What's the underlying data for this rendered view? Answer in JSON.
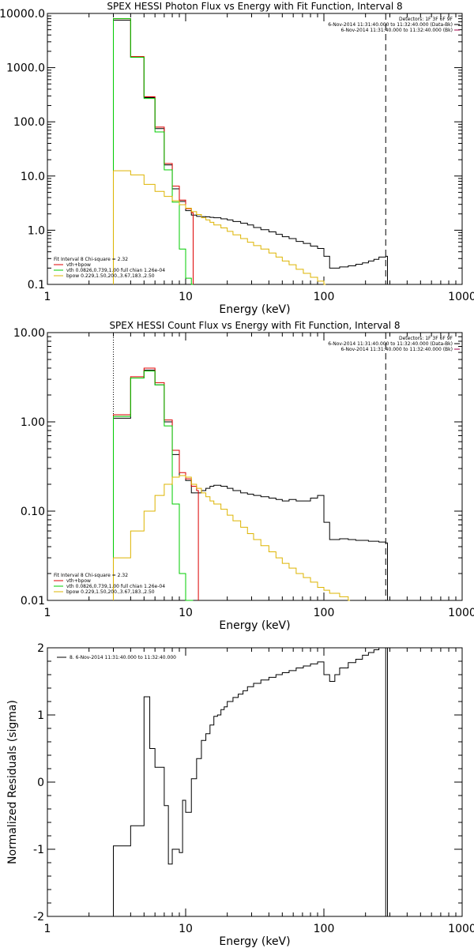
{
  "chart_data": [
    {
      "type": "line",
      "title": "SPEX HESSI Photon Flux vs Energy with Fit Function, Interval 8",
      "xlabel": "Energy (keV)",
      "ylabel": "",
      "xscale": "log",
      "yscale": "log",
      "xlim": [
        1,
        1000
      ],
      "ylim": [
        0.1,
        10000
      ],
      "xticks": [
        "1",
        "10",
        "100",
        "1000"
      ],
      "yticks": [
        "0.1",
        "1.0",
        "10.0",
        "100.0",
        "1000.0",
        "10000.0"
      ],
      "fit_energy_start": 3,
      "fit_energy_end": 280,
      "header_lines": [
        "Detectors: 1F 3F 6F 9F",
        "6-Nov-2014 11:31:40.000 to 11:32:40.000 (Data-Bk)",
        "6-Nov-2014 11:31:40.000 to 11:32:40.000 (Bk)"
      ],
      "legend_title": "Fit Interval 8   Chi-square = 2.32",
      "legend_items": [
        {
          "label": "vth+bpow",
          "color": "#dd0000"
        },
        {
          "label": "vth 0.0826,0.739,1.00  full chian 1.26e-04",
          "color": "#00cc00"
        },
        {
          "label": "bpow 0.229,1.50,200.,3.67,183.,2.50",
          "color": "#ddb400"
        }
      ],
      "series": [
        {
          "name": "6-Nov-2014 11:31:40.000 to 11:32:40.000 (Data-Bk)",
          "color": "#000000",
          "style": "step",
          "x": [
            3,
            4,
            5,
            6,
            7,
            8,
            9,
            10,
            11,
            12,
            13,
            14,
            15,
            16,
            18,
            20,
            22,
            25,
            28,
            31,
            35,
            40,
            45,
            50,
            56,
            63,
            71,
            80,
            90,
            100,
            110,
            130,
            150,
            170,
            190,
            210,
            230,
            250,
            280
          ],
          "y": [
            7500,
            1550,
            280,
            75,
            16,
            5.8,
            3.4,
            2.3,
            1.9,
            1.8,
            1.78,
            1.76,
            1.73,
            1.7,
            1.62,
            1.55,
            1.45,
            1.35,
            1.25,
            1.12,
            1.02,
            0.93,
            0.84,
            0.76,
            0.7,
            0.62,
            0.57,
            0.51,
            0.46,
            0.33,
            0.2,
            0.21,
            0.22,
            0.235,
            0.25,
            0.27,
            0.29,
            0.32,
            0.33
          ]
        },
        {
          "name": "vth+bpow",
          "color": "#dd0000",
          "style": "step",
          "x": [
            3,
            4,
            5,
            6,
            7,
            8,
            9,
            10,
            11
          ],
          "y": [
            8000,
            1600,
            290,
            80,
            17,
            6.5,
            3.6,
            2.5,
            2.1
          ]
        },
        {
          "name": "vth",
          "color": "#00cc00",
          "style": "step",
          "x": [
            3,
            4,
            5,
            6,
            7,
            8,
            9,
            10,
            11
          ],
          "y": [
            8000,
            1550,
            270,
            65,
            13,
            3.3,
            0.45,
            0.13,
            0.1
          ]
        },
        {
          "name": "bpow",
          "color": "#ddb400",
          "style": "step",
          "x": [
            3,
            4,
            5,
            6,
            7,
            8,
            9,
            10,
            11,
            12,
            13,
            14,
            15,
            16,
            18,
            20,
            22,
            25,
            28,
            31,
            35,
            40,
            45,
            50,
            56,
            63,
            71,
            80,
            90,
            100
          ],
          "y": [
            12.5,
            10.5,
            7.0,
            5.2,
            4.2,
            3.5,
            2.95,
            2.55,
            2.2,
            1.95,
            1.7,
            1.55,
            1.4,
            1.25,
            1.1,
            0.95,
            0.82,
            0.7,
            0.6,
            0.52,
            0.45,
            0.38,
            0.32,
            0.27,
            0.23,
            0.19,
            0.16,
            0.135,
            0.115,
            0.1
          ]
        }
      ]
    },
    {
      "type": "line",
      "title": "SPEX HESSI Count Flux vs Energy with Fit Function, Interval 8",
      "xlabel": "Energy (keV)",
      "ylabel": "",
      "xscale": "log",
      "yscale": "log",
      "xlim": [
        1,
        1000
      ],
      "ylim": [
        0.01,
        10
      ],
      "xticks": [
        "1",
        "10",
        "100",
        "1000"
      ],
      "yticks": [
        "0.01",
        "0.10",
        "1.00",
        "10.00"
      ],
      "fit_energy_start": 3,
      "fit_energy_end": 280,
      "header_lines": [
        "Detectors: 1F 3F 6F 9F",
        "6-Nov-2014 11:31:40.000 to 11:32:40.000 (Data-Bk)",
        "6-Nov-2014 11:31:40.000 to 11:32:40.000 (Bk)"
      ],
      "legend_title": "Fit Interval 8   Chi-square = 2.32",
      "legend_items": [
        {
          "label": "vth+bpow",
          "color": "#dd0000"
        },
        {
          "label": "vth 0.0826,0.739,1.00  full chian 1.26e-04",
          "color": "#00cc00"
        },
        {
          "label": "bpow 0.229,1.50,200.,3.67,183.,2.50",
          "color": "#ddb400"
        }
      ],
      "series": [
        {
          "name": "6-Nov-2014 11:31:40.000 to 11:32:40.000 (Data-Bk)",
          "color": "#000000",
          "style": "step",
          "x": [
            3,
            4,
            5,
            6,
            7,
            8,
            9,
            10,
            11,
            12,
            13,
            14,
            15,
            16,
            18,
            20,
            22,
            25,
            28,
            31,
            35,
            40,
            45,
            50,
            56,
            63,
            71,
            80,
            90,
            100,
            110,
            130,
            150,
            170,
            190,
            210,
            230,
            250,
            280
          ],
          "y": [
            1.1,
            3.1,
            3.8,
            2.6,
            1.0,
            0.43,
            0.25,
            0.22,
            0.16,
            0.16,
            0.17,
            0.18,
            0.19,
            0.195,
            0.19,
            0.18,
            0.17,
            0.16,
            0.155,
            0.15,
            0.145,
            0.14,
            0.135,
            0.13,
            0.135,
            0.13,
            0.13,
            0.14,
            0.15,
            0.075,
            0.048,
            0.049,
            0.048,
            0.047,
            0.047,
            0.046,
            0.046,
            0.045,
            0.044
          ]
        },
        {
          "name": "vth+bpow",
          "color": "#dd0000",
          "style": "step",
          "x": [
            3,
            4,
            5,
            6,
            7,
            8,
            9,
            10,
            11,
            12
          ],
          "y": [
            1.2,
            3.2,
            4.0,
            2.75,
            1.05,
            0.48,
            0.27,
            0.23,
            0.19,
            0.17
          ]
        },
        {
          "name": "vth",
          "color": "#00cc00",
          "style": "step",
          "x": [
            3,
            4,
            5,
            6,
            7,
            8,
            9,
            10,
            11
          ],
          "y": [
            1.15,
            3.1,
            3.7,
            2.6,
            0.9,
            0.12,
            0.02,
            0.01,
            0.01
          ]
        },
        {
          "name": "bpow",
          "color": "#ddb400",
          "style": "step",
          "x": [
            3,
            4,
            5,
            6,
            7,
            8,
            9,
            10,
            11,
            12,
            13,
            14,
            15,
            16,
            18,
            20,
            22,
            25,
            28,
            31,
            35,
            40,
            45,
            50,
            56,
            63,
            71,
            80,
            90,
            100,
            110,
            130,
            150
          ],
          "y": [
            0.03,
            0.06,
            0.1,
            0.15,
            0.2,
            0.24,
            0.25,
            0.24,
            0.2,
            0.18,
            0.16,
            0.145,
            0.13,
            0.12,
            0.105,
            0.09,
            0.078,
            0.066,
            0.056,
            0.048,
            0.041,
            0.035,
            0.03,
            0.026,
            0.023,
            0.02,
            0.018,
            0.016,
            0.014,
            0.013,
            0.012,
            0.011,
            0.01
          ]
        }
      ]
    },
    {
      "type": "line",
      "title": "",
      "xlabel": "Energy (keV)",
      "ylabel": "Normalized Residuals (sigma)",
      "xscale": "log",
      "yscale": "linear",
      "xlim": [
        1,
        1000
      ],
      "ylim": [
        -2,
        2
      ],
      "xticks": [
        "1",
        "10",
        "100",
        "1000"
      ],
      "yticks": [
        "-2",
        "-1",
        "0",
        "1",
        "2"
      ],
      "fit_energy_end": 280,
      "legend_items": [
        {
          "label": "8.  6-Nov-2014 11:31:40.000 to 11:32:40.000",
          "color": "#000000"
        }
      ],
      "series": [
        {
          "name": "8.  6-Nov-2014 11:31:40.000 to 11:32:40.000",
          "color": "#000000",
          "style": "step",
          "x": [
            3,
            4,
            5,
            5.5,
            6,
            7,
            7.5,
            8,
            9,
            9.5,
            10,
            11,
            12,
            13,
            14,
            15,
            16,
            17,
            18,
            19,
            20,
            22,
            24,
            26,
            28,
            31,
            35,
            40,
            45,
            50,
            56,
            63,
            71,
            80,
            90,
            100,
            110,
            120,
            130,
            150,
            170,
            190,
            210,
            230,
            250,
            280
          ],
          "y": [
            -0.95,
            -0.65,
            1.27,
            0.5,
            0.22,
            -0.35,
            -1.22,
            -1.0,
            -1.05,
            -0.27,
            -0.45,
            0.05,
            0.35,
            0.62,
            0.72,
            0.85,
            0.98,
            1.0,
            1.08,
            1.12,
            1.2,
            1.26,
            1.31,
            1.36,
            1.42,
            1.47,
            1.52,
            1.56,
            1.6,
            1.63,
            1.66,
            1.7,
            1.73,
            1.76,
            1.79,
            1.6,
            1.5,
            1.6,
            1.7,
            1.78,
            1.83,
            1.89,
            1.93,
            1.97,
            2.0,
            2.0
          ]
        }
      ]
    }
  ]
}
